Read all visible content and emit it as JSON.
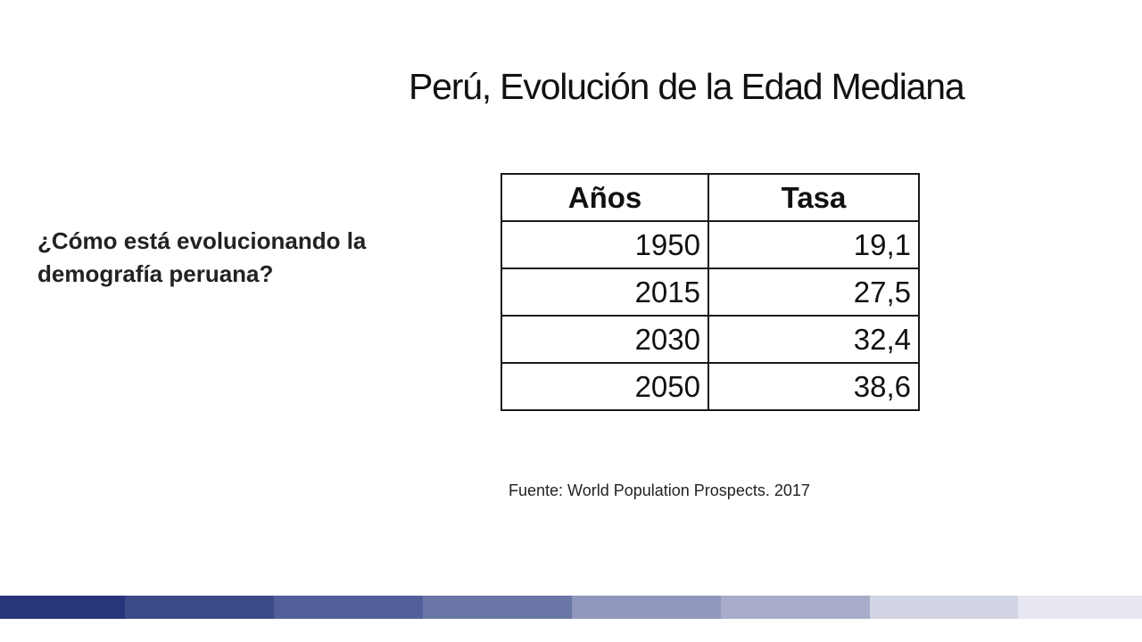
{
  "slide": {
    "title": "Perú, Evolución de la Edad Mediana",
    "question": "¿Cómo está evolucionando la demografía peruana?",
    "source": "Fuente: World Population Prospects. 2017"
  },
  "table": {
    "headers": [
      "Años",
      "Tasa"
    ],
    "rows": [
      [
        "1950",
        "19,1"
      ],
      [
        "2015",
        "27,5"
      ],
      [
        "2030",
        "32,4"
      ],
      [
        "2050",
        "38,6"
      ]
    ]
  },
  "color_bar": {
    "colors": [
      "#27367a",
      "#3b4a88",
      "#52609a",
      "#6a76a6",
      "#9097bd",
      "#a8acc9",
      "#d1d4e3",
      "#e6e7f0"
    ]
  }
}
